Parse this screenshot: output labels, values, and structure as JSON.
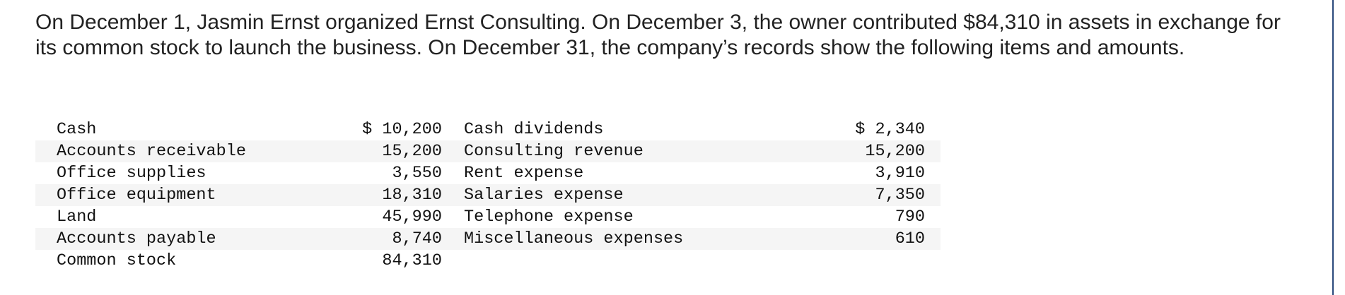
{
  "problem": {
    "text": "On December 1, Jasmin Ernst organized Ernst Consulting. On December 3, the owner contributed $84,310 in assets in exchange for its common stock to launch the business. On December 31, the company’s records show the following items and amounts.",
    "table": {
      "rows": [
        [
          "Cash",
          "$ 10,200",
          "Cash dividends",
          "$ 2,340"
        ],
        [
          "Accounts receivable",
          "15,200",
          "Consulting revenue",
          "15,200"
        ],
        [
          "Office supplies",
          "3,550",
          "Rent expense",
          "3,910"
        ],
        [
          "Office equipment",
          "18,310",
          "Salaries expense",
          "7,350"
        ],
        [
          "Land",
          "45,990",
          "Telephone expense",
          "790"
        ],
        [
          "Accounts payable",
          "8,740",
          "Miscellaneous expenses",
          "610"
        ],
        [
          "Common stock",
          "84,310"
        ]
      ]
    }
  }
}
